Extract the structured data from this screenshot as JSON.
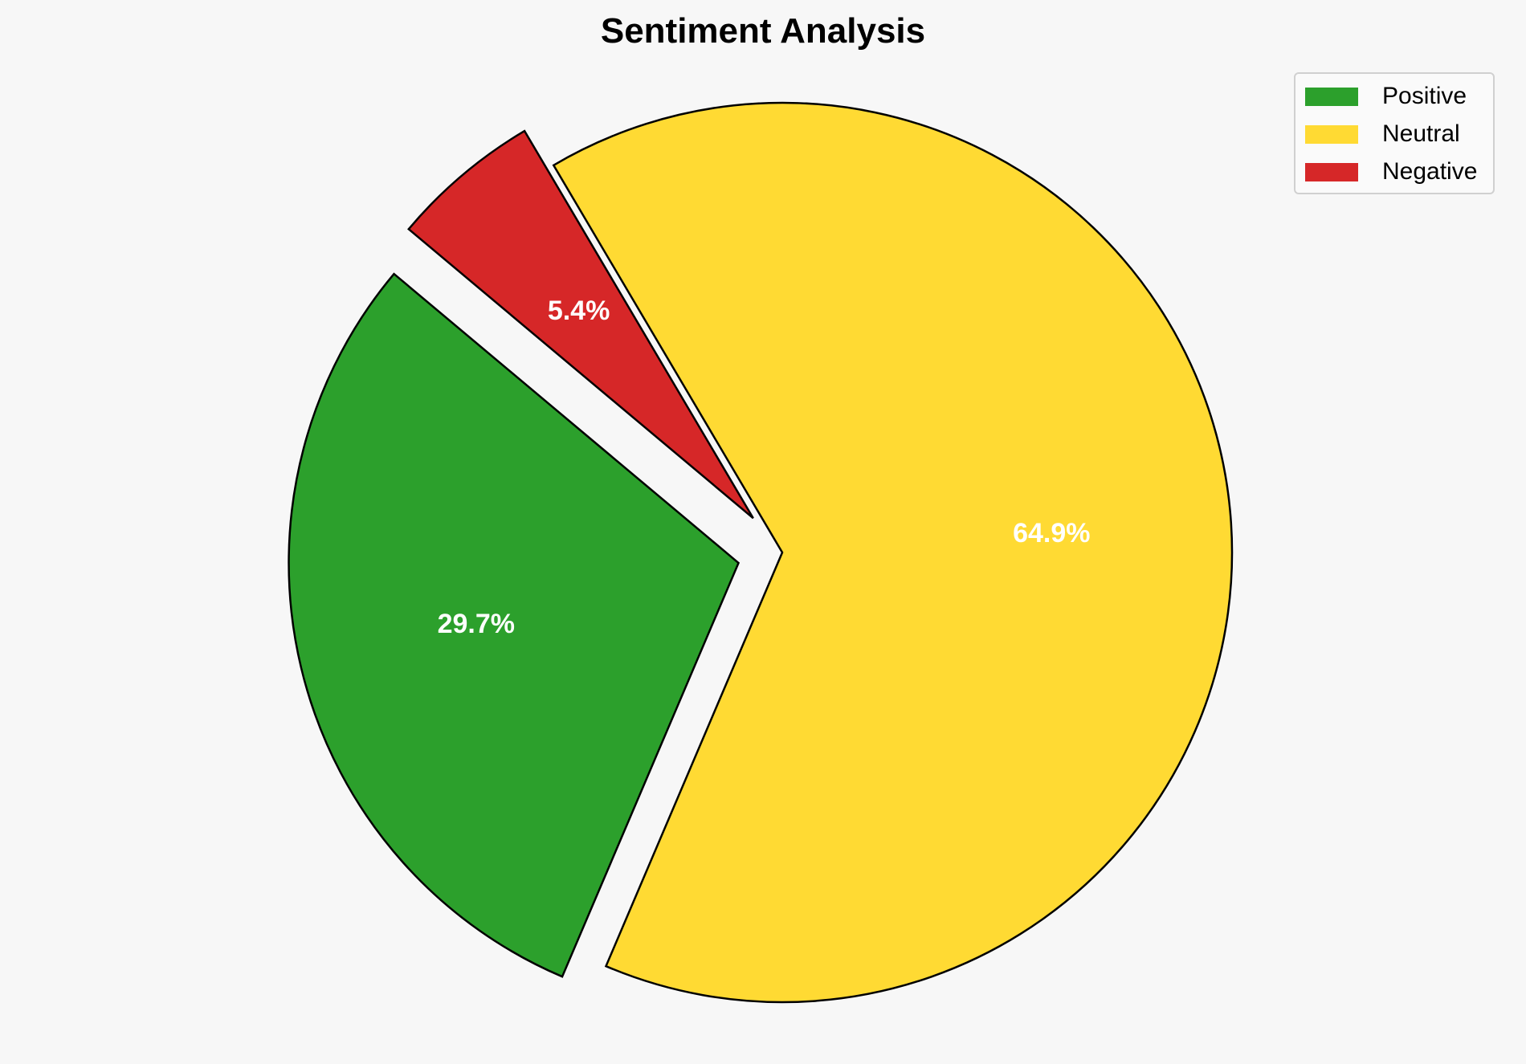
{
  "chart_data": {
    "type": "pie",
    "title": "Sentiment Analysis",
    "labels": [
      "Positive",
      "Neutral",
      "Negative"
    ],
    "values": [
      29.7,
      64.9,
      5.4
    ],
    "value_labels": [
      "29.7%",
      "64.9%",
      "5.4%"
    ],
    "colors": [
      "#2ca02c",
      "#ffda33",
      "#d62728"
    ],
    "explode": [
      0.1,
      0,
      0.1
    ],
    "start_angle": 140,
    "direction": "counterclockwise",
    "edge_color": "#000000",
    "legend_position": "top-right"
  }
}
